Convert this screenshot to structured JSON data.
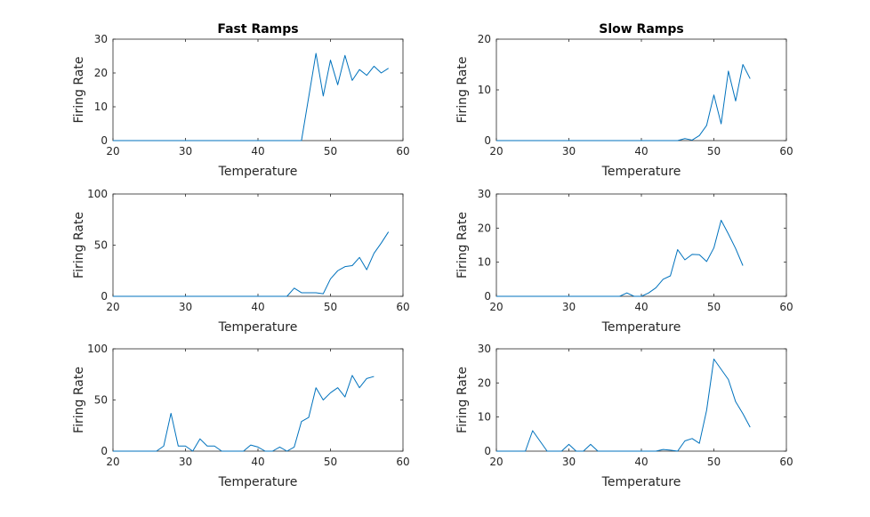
{
  "figure": {
    "background": "#ffffff",
    "line_color": "#0072bd",
    "axis_color": "#262626"
  },
  "chart_data": [
    {
      "type": "line",
      "title": "Fast Ramps",
      "xlabel": "Temperature",
      "ylabel": "Firing Rate",
      "xlim": [
        20,
        60
      ],
      "ylim": [
        0,
        30
      ],
      "xticks": [
        20,
        30,
        40,
        50,
        60
      ],
      "yticks": [
        0,
        10,
        20,
        30
      ],
      "grid": false,
      "series": [
        {
          "x": [
            20,
            46,
            48,
            49,
            50,
            51,
            52,
            53,
            54,
            55,
            56,
            57,
            58
          ],
          "y": [
            0,
            0,
            25.8,
            13.2,
            23.8,
            16.5,
            25.2,
            17.8,
            21.0,
            19.3,
            22.0,
            20.0,
            21.4
          ]
        }
      ]
    },
    {
      "type": "line",
      "title": "Slow Ramps",
      "xlabel": "Temperature",
      "ylabel": "Firing Rate",
      "xlim": [
        20,
        60
      ],
      "ylim": [
        0,
        20
      ],
      "xticks": [
        20,
        30,
        40,
        50,
        60
      ],
      "yticks": [
        0,
        10,
        20
      ],
      "grid": false,
      "series": [
        {
          "x": [
            20,
            45,
            46,
            47,
            48,
            49,
            50,
            51,
            52,
            53,
            54,
            55
          ],
          "y": [
            0,
            0,
            0.4,
            0.1,
            1.0,
            3.0,
            9.0,
            3.3,
            13.7,
            7.8,
            15.0,
            12.2
          ]
        }
      ]
    },
    {
      "type": "line",
      "title": "",
      "xlabel": "Temperature",
      "ylabel": "Firing Rate",
      "xlim": [
        20,
        60
      ],
      "ylim": [
        0,
        100
      ],
      "xticks": [
        20,
        30,
        40,
        50,
        60
      ],
      "yticks": [
        0,
        50,
        100
      ],
      "grid": false,
      "series": [
        {
          "x": [
            20,
            44,
            45,
            46,
            47,
            48,
            49,
            50,
            51,
            52,
            53,
            54,
            55,
            56,
            57,
            58
          ],
          "y": [
            0,
            0,
            8,
            3.5,
            3.5,
            3.5,
            2.5,
            17,
            25,
            29,
            30,
            38,
            26,
            42,
            52,
            63
          ]
        }
      ]
    },
    {
      "type": "line",
      "title": "",
      "xlabel": "Temperature",
      "ylabel": "Firing Rate",
      "xlim": [
        20,
        60
      ],
      "ylim": [
        0,
        30
      ],
      "xticks": [
        20,
        30,
        40,
        50,
        60
      ],
      "yticks": [
        0,
        10,
        20,
        30
      ],
      "grid": false,
      "series": [
        {
          "x": [
            20,
            37,
            38,
            39,
            40,
            41,
            42,
            43,
            44,
            45,
            46,
            47,
            48,
            49,
            50,
            51,
            52,
            53,
            54
          ],
          "y": [
            0,
            0,
            1.0,
            0,
            0,
            1.0,
            2.5,
            5.0,
            6.0,
            13.7,
            10.7,
            12.3,
            12.2,
            10.2,
            14.2,
            22.3,
            18.3,
            14.0,
            9.0
          ]
        }
      ]
    },
    {
      "type": "line",
      "title": "",
      "xlabel": "Temperature",
      "ylabel": "Firing Rate",
      "xlim": [
        20,
        60
      ],
      "ylim": [
        0,
        100
      ],
      "xticks": [
        20,
        30,
        40,
        50,
        60
      ],
      "yticks": [
        0,
        50,
        100
      ],
      "grid": false,
      "series": [
        {
          "x": [
            20,
            26,
            27,
            28,
            29,
            30,
            31,
            32,
            33,
            34,
            35,
            38,
            39,
            40,
            41,
            42,
            43,
            44,
            45,
            46,
            47,
            48,
            49,
            50,
            51,
            52,
            53,
            54,
            55,
            56
          ],
          "y": [
            0,
            0,
            5,
            37,
            5,
            5,
            0,
            12,
            5,
            5,
            0,
            0,
            6,
            4,
            0,
            0,
            4,
            0,
            4,
            29,
            33,
            62,
            50,
            57,
            62,
            53,
            74,
            62,
            71,
            73
          ]
        }
      ]
    },
    {
      "type": "line",
      "title": "",
      "xlabel": "Temperature",
      "ylabel": "Firing Rate",
      "xlim": [
        20,
        60
      ],
      "ylim": [
        0,
        30
      ],
      "xticks": [
        20,
        30,
        40,
        50,
        60
      ],
      "yticks": [
        0,
        10,
        20,
        30
      ],
      "grid": false,
      "series": [
        {
          "x": [
            20,
            24,
            25,
            26,
            27,
            28,
            29,
            30,
            31,
            32,
            33,
            34,
            42,
            43,
            44,
            45,
            46,
            47,
            48,
            49,
            50,
            51,
            52,
            53,
            54,
            55
          ],
          "y": [
            0,
            0,
            6,
            3,
            0,
            0,
            0,
            2,
            0,
            0,
            2,
            0,
            0,
            0.5,
            0.3,
            0,
            3,
            3.7,
            2.3,
            12,
            27,
            24,
            21,
            14.5,
            11,
            7
          ]
        }
      ]
    }
  ]
}
